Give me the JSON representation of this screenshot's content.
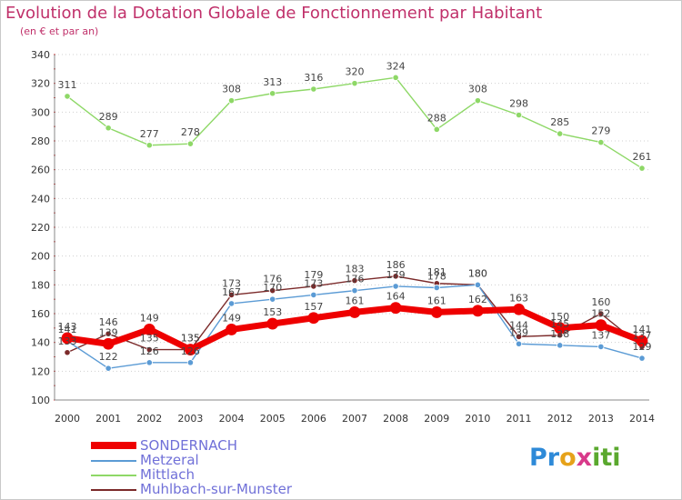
{
  "header": {
    "title": "Evolution de la Dotation Globale de Fonctionnement par Habitant",
    "subtitle": "(en € et par an)"
  },
  "logo": {
    "text": "Proxiti",
    "colors": [
      "#2e8ad8",
      "#e6a21a",
      "#d83a8a",
      "#5aa82e"
    ]
  },
  "chart_data": {
    "type": "line",
    "title": "Evolution de la Dotation Globale de Fonctionnement par Habitant",
    "subtitle": "(en € et par an)",
    "x": [
      2000,
      2001,
      2002,
      2003,
      2004,
      2005,
      2006,
      2007,
      2008,
      2009,
      2010,
      2011,
      2012,
      2013,
      2014
    ],
    "ylim": [
      100,
      340
    ],
    "yticks": [
      100,
      120,
      140,
      160,
      180,
      200,
      220,
      240,
      260,
      280,
      300,
      320,
      340
    ],
    "grid": "horizontal dotted",
    "legend": "bottom-left",
    "series": [
      {
        "name": "SONDERNACH",
        "color": "#ee0000",
        "values": [
          143,
          139,
          149,
          135,
          149,
          153,
          157,
          161,
          164,
          161,
          162,
          163,
          150,
          152,
          141
        ]
      },
      {
        "name": "Metzeral",
        "color": "#5b9bd5",
        "values": [
          141,
          122,
          126,
          126,
          167,
          170,
          173,
          176,
          179,
          178,
          180,
          139,
          138,
          137,
          129
        ]
      },
      {
        "name": "Mittlach",
        "color": "#8ed867",
        "values": [
          311,
          289,
          277,
          278,
          308,
          313,
          316,
          320,
          324,
          288,
          308,
          298,
          285,
          279,
          261
        ]
      },
      {
        "name": "Muhlbach-sur-Munster",
        "color": "#7b2a2a",
        "values": [
          133,
          146,
          135,
          135,
          173,
          176,
          179,
          183,
          186,
          181,
          180,
          144,
          145,
          160,
          137
        ]
      }
    ]
  }
}
